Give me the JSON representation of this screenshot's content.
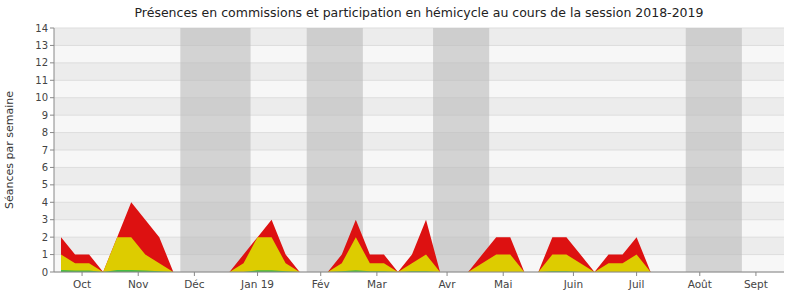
{
  "chart_data": {
    "type": "area",
    "title": "Présences en commissions et participation en hémicycle au cours de la session 2018-2019",
    "y_label": "Séances par semaine",
    "x": [
      0,
      1,
      2,
      3,
      4,
      5,
      6,
      7,
      8,
      9,
      10,
      11,
      12,
      13,
      14,
      15,
      16,
      17,
      18,
      19,
      20,
      21,
      22,
      23,
      24,
      25,
      26,
      27,
      28,
      29,
      30,
      31,
      32,
      33,
      34,
      35,
      36,
      37,
      38,
      39,
      40,
      41,
      42,
      43,
      44,
      45,
      46,
      47,
      48,
      49,
      50,
      51
    ],
    "series": [
      {
        "color": "#dd1111",
        "values": [
          2,
          1,
          1,
          0,
          2,
          4,
          3,
          2,
          0,
          0,
          0,
          0,
          0,
          1,
          2,
          3,
          1,
          0,
          0,
          0,
          1,
          3,
          1,
          1,
          0,
          1,
          3,
          0,
          0,
          0,
          1,
          2,
          2,
          0,
          0,
          2,
          2,
          1,
          0,
          1,
          1,
          2,
          0,
          0,
          0,
          0,
          0,
          0,
          0,
          0,
          0,
          0
        ]
      },
      {
        "color": "#ddcc00",
        "values": [
          1,
          0.5,
          0.5,
          0,
          2,
          2,
          1,
          0.5,
          0,
          0,
          0,
          0,
          0,
          0.5,
          2,
          2,
          0.5,
          0,
          0,
          0,
          0.5,
          2,
          0.5,
          0.5,
          0,
          0.5,
          1,
          0,
          0,
          0,
          0.5,
          1,
          1,
          0,
          0,
          1,
          1,
          0.5,
          0,
          0.5,
          0.5,
          1,
          0,
          0,
          0,
          0,
          0,
          0,
          0,
          0,
          0,
          0
        ]
      },
      {
        "color": "#44bb44",
        "values": [
          0.12,
          0.08,
          0.08,
          0,
          0.12,
          0.12,
          0.08,
          0.05,
          0,
          0,
          0,
          0,
          0,
          0,
          0.1,
          0.1,
          0.05,
          0,
          0,
          0,
          0.05,
          0.1,
          0.05,
          0.05,
          0,
          0.05,
          0.05,
          0,
          0,
          0,
          0,
          0,
          0,
          0,
          0,
          0.05,
          0.05,
          0,
          0,
          0,
          0,
          0,
          0,
          0,
          0,
          0,
          0,
          0,
          0,
          0,
          0,
          0
        ]
      }
    ],
    "bands": [
      {
        "start": 8.5,
        "end": 13.5
      },
      {
        "start": 17.5,
        "end": 21.5
      },
      {
        "start": 26.5,
        "end": 30.5
      },
      {
        "start": 44.5,
        "end": 48.5
      }
    ],
    "xlim": [
      -0.5,
      51.5
    ],
    "xticks": [
      {
        "value": 1.5,
        "label": "Oct"
      },
      {
        "value": 5.5,
        "label": "Nov"
      },
      {
        "value": 9.5,
        "label": "Déc"
      },
      {
        "value": 14,
        "label": "Jan 19"
      },
      {
        "value": 18.5,
        "label": "Fév"
      },
      {
        "value": 22.5,
        "label": "Mar"
      },
      {
        "value": 27.5,
        "label": "Avr"
      },
      {
        "value": 31.5,
        "label": "Mai"
      },
      {
        "value": 36.5,
        "label": "Juin"
      },
      {
        "value": 41,
        "label": "Juil"
      },
      {
        "value": 45.5,
        "label": "Août"
      },
      {
        "value": 49.5,
        "label": "Sept"
      }
    ],
    "ylim": [
      0,
      14
    ],
    "yticks": [
      0,
      1,
      2,
      3,
      4,
      5,
      6,
      7,
      8,
      9,
      10,
      11,
      12,
      13,
      14
    ],
    "grid": true
  }
}
